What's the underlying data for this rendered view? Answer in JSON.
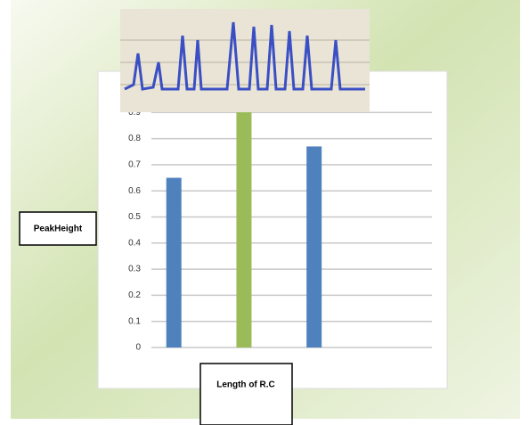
{
  "chart_data": {
    "type": "bar",
    "y_axis_label": "PeakHeight",
    "x_axis_label": "Length of R.C",
    "categories": [
      null,
      null,
      null,
      null
    ],
    "values": [
      0.65,
      0.95,
      0.77,
      null
    ],
    "colors": [
      "#4f81bd",
      "#9bbb59",
      "#4f81bd",
      "#4f81bd"
    ],
    "ylim": [
      0,
      1
    ],
    "yticks": [
      0,
      0.1,
      0.2,
      0.3,
      0.4,
      0.5,
      0.6,
      0.7,
      0.8,
      0.9
    ],
    "grid": true
  }
}
